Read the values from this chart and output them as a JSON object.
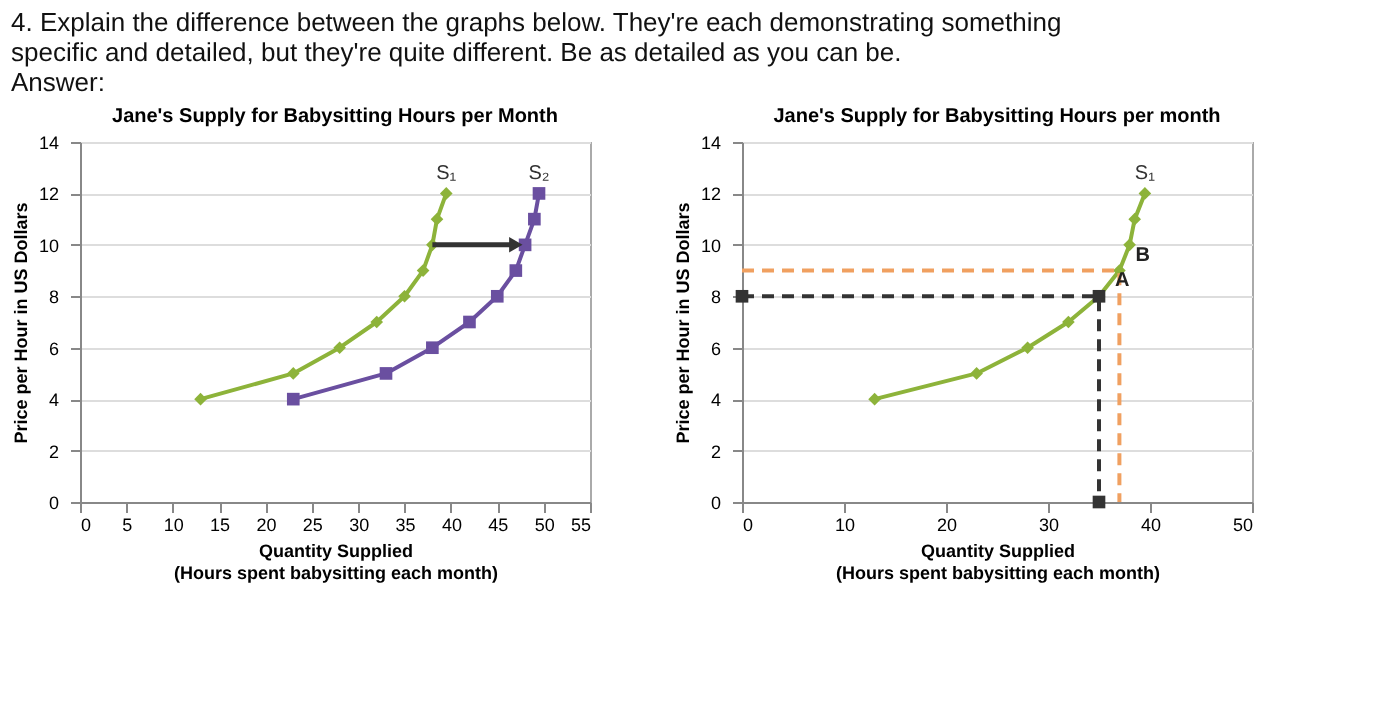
{
  "chart_data": [
    {
      "type": "line",
      "title": "Jane's Supply for Babysitting Hours per Month",
      "xlabel": "Quantity Supplied\n(Hours spent babysitting each month)",
      "ylabel": "Price per Hour in US Dollars",
      "annotations": [
        "4. Explain the difference between the graphs below. They're each demonstrating something specific and detailed, but they're quite different. Be as detailed as you can be.",
        "Answer:"
      ],
      "xlim": [
        0,
        55
      ],
      "xticks": [
        0,
        5,
        10,
        15,
        20,
        25,
        30,
        35,
        40,
        45,
        50,
        55
      ],
      "ylim": [
        0,
        14
      ],
      "yticks": [
        0,
        2,
        4,
        6,
        8,
        10,
        12,
        14
      ],
      "grid": "y",
      "legend": false,
      "line_style": "solid",
      "series": [
        {
          "name": "S₁",
          "color": "#8db33a",
          "marker": "diamond",
          "x": [
            13,
            23,
            28,
            32,
            35,
            37,
            38,
            38.5,
            39.5
          ],
          "values": [
            4,
            5,
            6,
            7,
            8,
            9,
            10,
            11,
            12
          ]
        },
        {
          "name": "S₂",
          "color": "#6a4fa0",
          "marker": "square",
          "x": [
            23,
            33,
            38,
            42,
            45,
            47,
            48,
            49,
            49.5
          ],
          "values": [
            4,
            5,
            6,
            7,
            8,
            9,
            10,
            11,
            12
          ]
        }
      ]
    },
    {
      "type": "line",
      "title": "Jane's Supply for Babysitting Hours per month",
      "xlabel": "Quantity Supplied\n(Hours spent babysitting each month)",
      "ylabel": "Price per Hour in US Dollars",
      "annotations": [
        {
          "text": "A",
          "x": 35,
          "y": 8
        },
        {
          "text": "B",
          "x": 37,
          "y": 9
        }
      ],
      "xlim": [
        0,
        50
      ],
      "xticks": [
        0,
        10,
        20,
        30,
        40,
        50
      ],
      "ylim": [
        0,
        14
      ],
      "yticks": [
        0,
        2,
        4,
        6,
        8,
        10,
        12,
        14
      ],
      "grid": "y",
      "legend": false,
      "series": [
        {
          "name": "S₁",
          "color": "#8db33a",
          "marker": "diamond",
          "line_style": "solid",
          "x": [
            13,
            23,
            28,
            32,
            35,
            37,
            38,
            38.5,
            39.5
          ],
          "values": [
            4,
            5,
            6,
            7,
            8,
            9,
            10,
            11,
            12
          ]
        },
        {
          "color": "#333333",
          "marker": "square",
          "line_style": "dashed",
          "x": [
            0,
            35,
            35
          ],
          "values": [
            8,
            8,
            0
          ]
        },
        {
          "color": "#f0a060",
          "marker": "none",
          "line_style": "dashed",
          "x": [
            0,
            37,
            37
          ],
          "values": [
            9,
            9,
            0
          ]
        }
      ]
    }
  ]
}
